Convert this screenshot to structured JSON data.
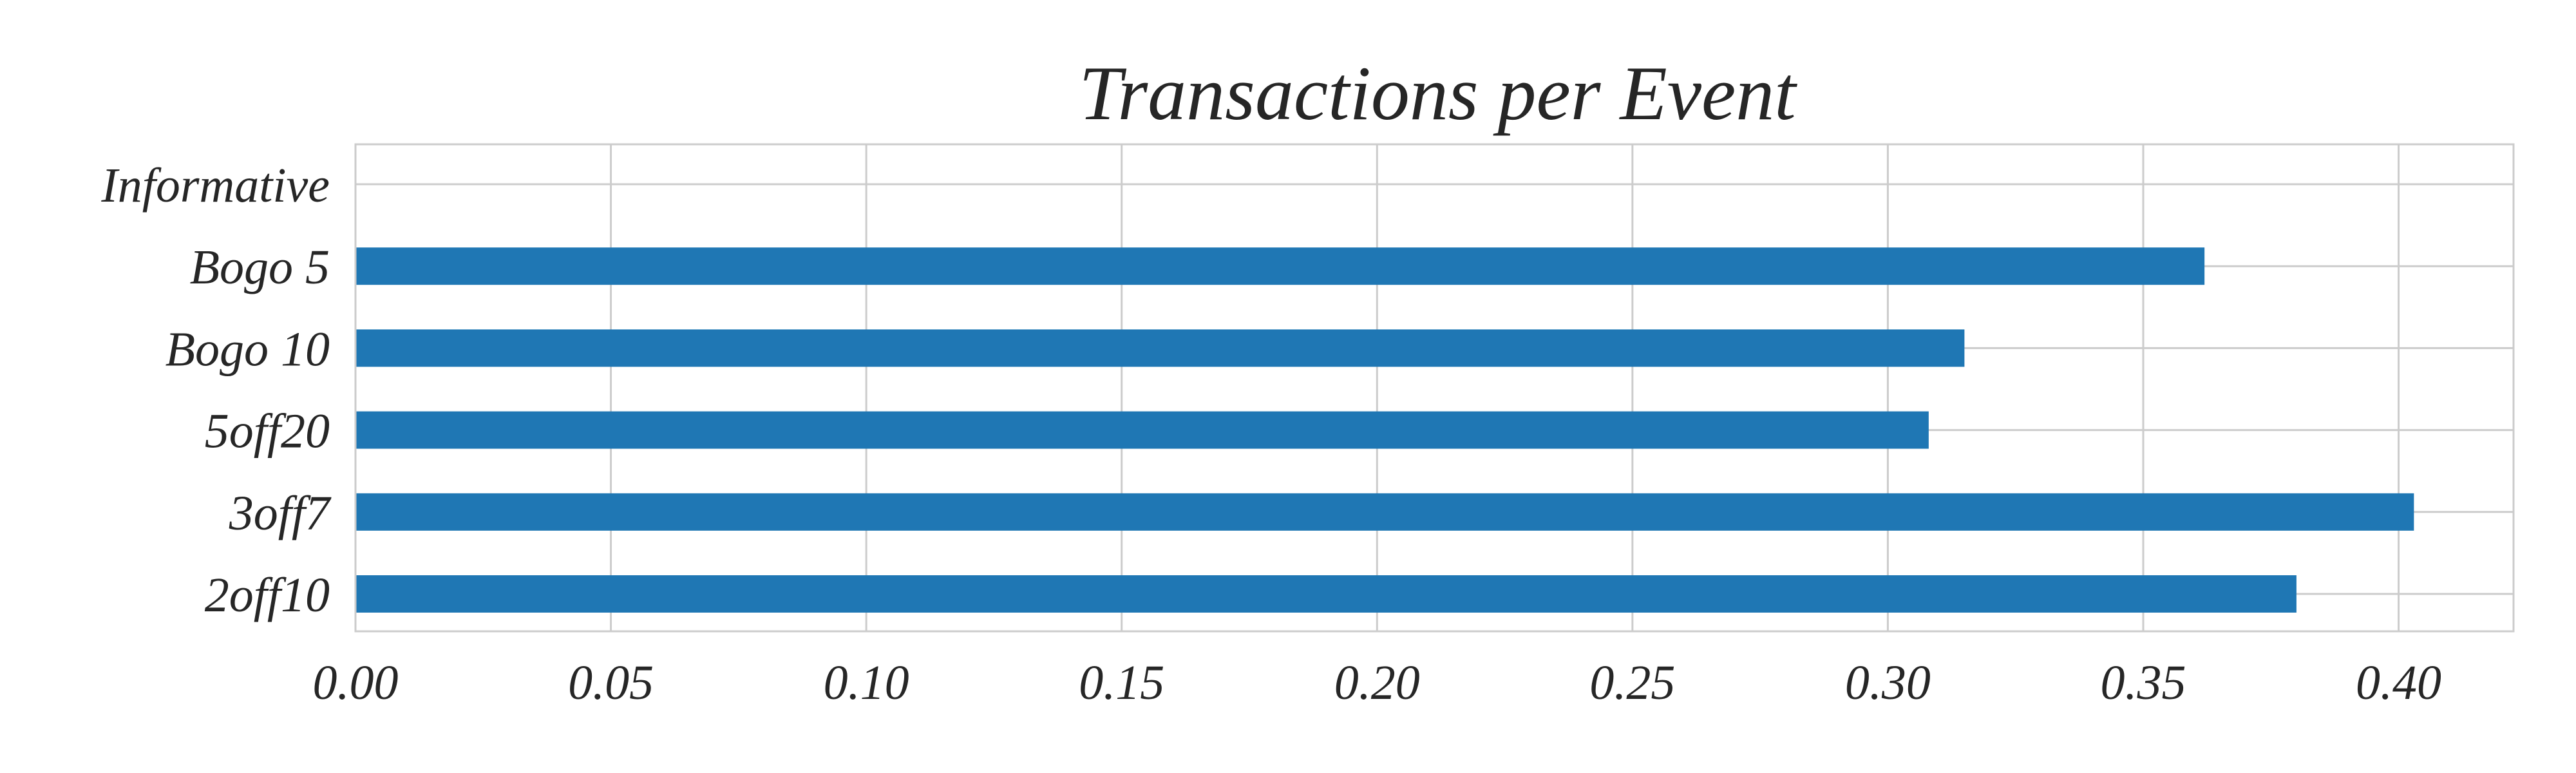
{
  "chart_data": {
    "type": "bar",
    "orientation": "horizontal",
    "title": "Transactions per Event",
    "xlabel": "",
    "ylabel": "",
    "categories": [
      "Informative",
      "Bogo 5",
      "Bogo 10",
      "5off20",
      "3off7",
      "2off10"
    ],
    "values": [
      0.0,
      0.362,
      0.315,
      0.308,
      0.403,
      0.38
    ],
    "xlim": [
      0.0,
      0.4225
    ],
    "xticks": [
      0.0,
      0.05,
      0.1,
      0.15,
      0.2,
      0.25,
      0.3,
      0.35,
      0.4
    ],
    "xtick_labels": [
      "0.00",
      "0.05",
      "0.10",
      "0.15",
      "0.20",
      "0.25",
      "0.30",
      "0.35",
      "0.40"
    ],
    "bar_color": "#1f77b4",
    "grid": true,
    "legend": "none"
  }
}
